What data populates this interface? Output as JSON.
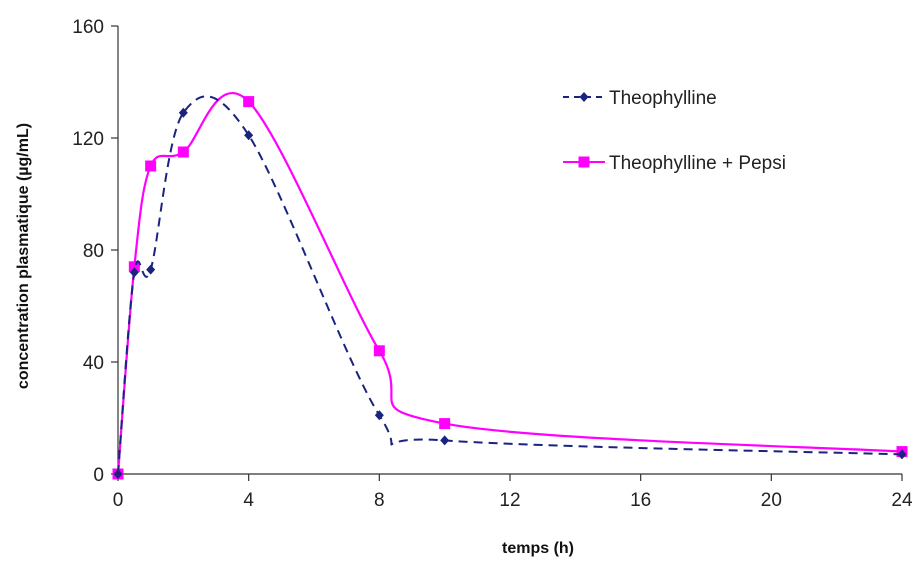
{
  "chart_data": {
    "type": "line",
    "title": "",
    "xlabel": "temps (h)",
    "ylabel": "concentration plasmatique  (µg/mL)",
    "xlim": [
      0,
      24
    ],
    "ylim": [
      0,
      160
    ],
    "xticks": [
      0,
      4,
      8,
      12,
      16,
      20,
      24
    ],
    "yticks": [
      0,
      40,
      80,
      120,
      160
    ],
    "grid": false,
    "legend_position": "top-right",
    "series": [
      {
        "name": "Theophylline",
        "color": "#1a237e",
        "line_style": "dashed",
        "marker": "diamond",
        "x": [
          0,
          0.5,
          1,
          2,
          4,
          8,
          10,
          24
        ],
        "y": [
          0,
          72,
          73,
          129,
          121,
          21,
          12,
          7
        ]
      },
      {
        "name": "Theophylline + Pepsi",
        "color": "#ff00ff",
        "line_style": "solid",
        "marker": "square",
        "x": [
          0,
          0.5,
          1,
          2,
          4,
          8,
          10,
          24
        ],
        "y": [
          0,
          74,
          110,
          115,
          133,
          44,
          18,
          8
        ]
      }
    ]
  }
}
